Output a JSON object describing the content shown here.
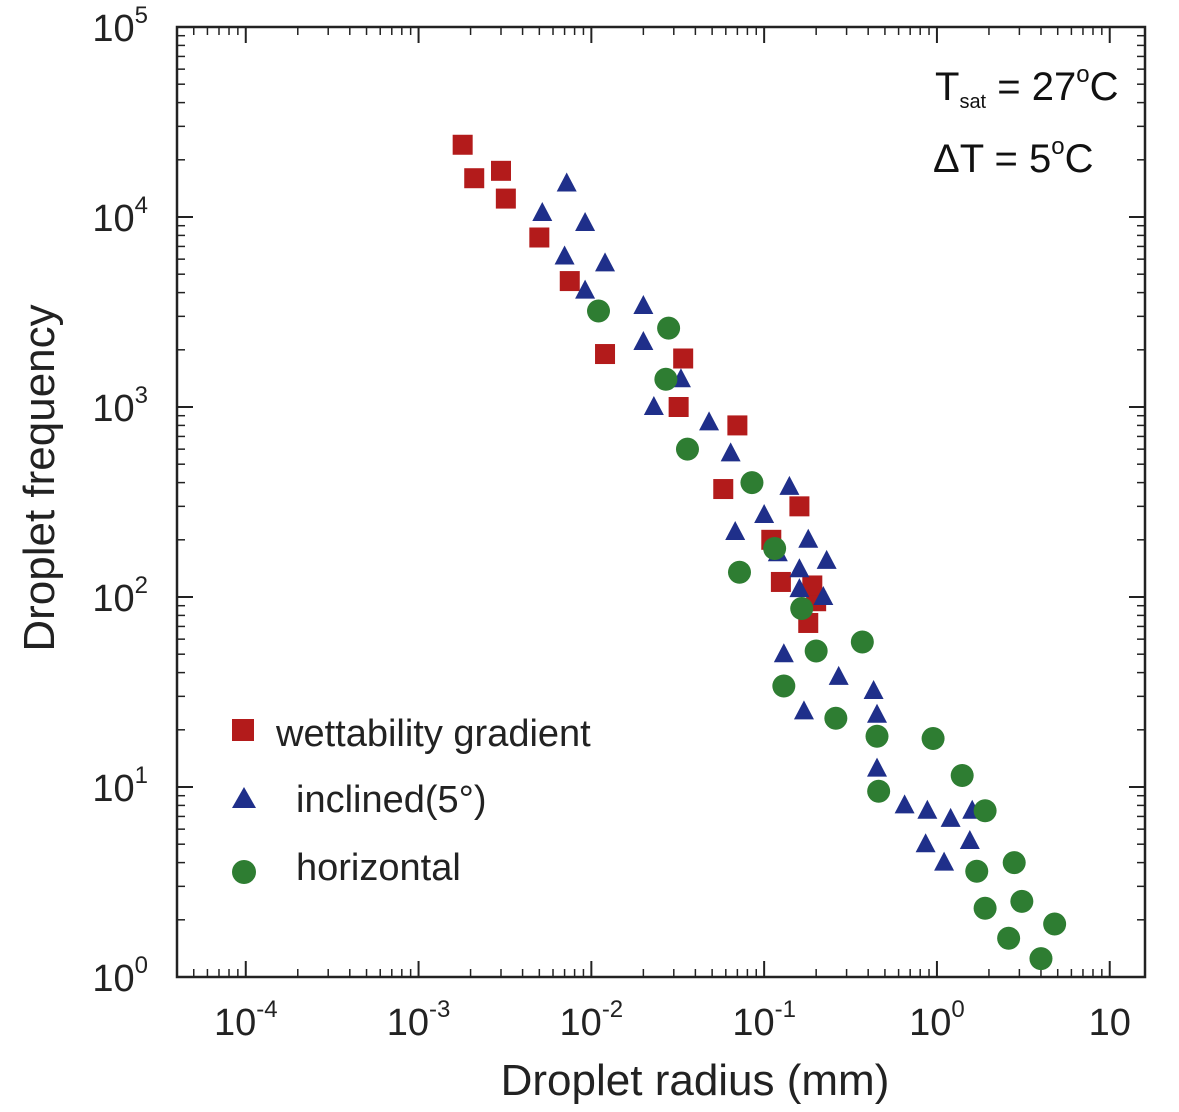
{
  "chart_data": {
    "type": "scatter",
    "title": "",
    "xlabel": "Droplet radius (mm)",
    "ylabel": "Droplet frequency",
    "x_scale": "log",
    "y_scale": "log",
    "xlim": [
      4e-05,
      16
    ],
    "ylim": [
      1,
      100000
    ],
    "grid": false,
    "legend_position": "bottom-left",
    "x_tick_labels": [
      {
        "value": 0.0001,
        "base": "10",
        "exp": "-4"
      },
      {
        "value": 0.001,
        "base": "10",
        "exp": "-3"
      },
      {
        "value": 0.01,
        "base": "10",
        "exp": "-2"
      },
      {
        "value": 0.1,
        "base": "10",
        "exp": "-1"
      },
      {
        "value": 1,
        "base": "10",
        "exp": "0"
      },
      {
        "value": 10,
        "base": "10",
        "exp": ""
      }
    ],
    "y_tick_labels": [
      {
        "value": 1,
        "base": "10",
        "exp": "0"
      },
      {
        "value": 10,
        "base": "10",
        "exp": "1"
      },
      {
        "value": 100,
        "base": "10",
        "exp": "2"
      },
      {
        "value": 1000,
        "base": "10",
        "exp": "3"
      },
      {
        "value": 10000,
        "base": "10",
        "exp": "4"
      },
      {
        "value": 100000,
        "base": "10",
        "exp": "5"
      }
    ],
    "annotation": {
      "line1": {
        "sym": "T",
        "sub": "sat",
        "rest": " = 27",
        "sup": "o",
        "unit": "C"
      },
      "line2": {
        "sym": "ΔT",
        "rest": " = 5",
        "sup": "o",
        "unit": "C"
      }
    },
    "series": [
      {
        "name": "wettability gradient",
        "marker": "square",
        "color": "#b31b1b",
        "x": [
          0.0018,
          0.0021,
          0.003,
          0.0032,
          0.005,
          0.0075,
          0.012,
          0.032,
          0.034,
          0.07,
          0.058,
          0.11,
          0.125,
          0.16,
          0.18,
          0.2,
          0.19
        ],
        "y": [
          24000,
          16000,
          17500,
          12500,
          7800,
          4600,
          1900,
          1000,
          1800,
          800,
          370,
          200,
          120,
          300,
          73,
          95,
          115
        ]
      },
      {
        "name": "inclined (5°)",
        "marker": "triangle",
        "color": "#1f2f8a",
        "x": [
          0.0072,
          0.0052,
          0.0092,
          0.007,
          0.012,
          0.0092,
          0.02,
          0.02,
          0.023,
          0.033,
          0.048,
          0.064,
          0.068,
          0.1,
          0.14,
          0.12,
          0.16,
          0.18,
          0.23,
          0.16,
          0.22,
          0.13,
          0.27,
          0.17,
          0.43,
          0.45,
          0.45,
          0.65,
          0.88,
          0.86,
          1.2,
          1.1,
          1.55,
          1.6
        ],
        "y": [
          15000,
          10500,
          9300,
          6200,
          5700,
          4100,
          3400,
          2200,
          1000,
          1400,
          830,
          570,
          220,
          270,
          380,
          170,
          140,
          200,
          155,
          110,
          100,
          50,
          38,
          25,
          32,
          24,
          12.5,
          8,
          7.5,
          5,
          6.8,
          4,
          5.2,
          7.5
        ]
      },
      {
        "name": "horizontal",
        "marker": "circle",
        "color": "#2e7d32",
        "x": [
          0.011,
          0.028,
          0.027,
          0.036,
          0.085,
          0.072,
          0.115,
          0.165,
          0.13,
          0.2,
          0.37,
          0.26,
          0.45,
          0.95,
          0.46,
          1.4,
          1.9,
          2.8,
          1.7,
          1.9,
          3.1,
          2.6,
          4.8,
          4.0
        ],
        "y": [
          3200,
          2600,
          1400,
          600,
          400,
          135,
          180,
          87,
          34,
          52,
          58,
          23,
          18.5,
          18,
          9.5,
          11.5,
          7.5,
          4,
          3.6,
          2.3,
          2.5,
          1.6,
          1.9,
          1.25
        ]
      }
    ],
    "legend": [
      {
        "label": "wettability gradient",
        "marker": "square",
        "color": "#b31b1b"
      },
      {
        "label": "inclined(5°)",
        "marker": "triangle",
        "color": "#1f2f8a"
      },
      {
        "label": "horizontal",
        "marker": "circle",
        "color": "#2e7d32"
      }
    ]
  }
}
